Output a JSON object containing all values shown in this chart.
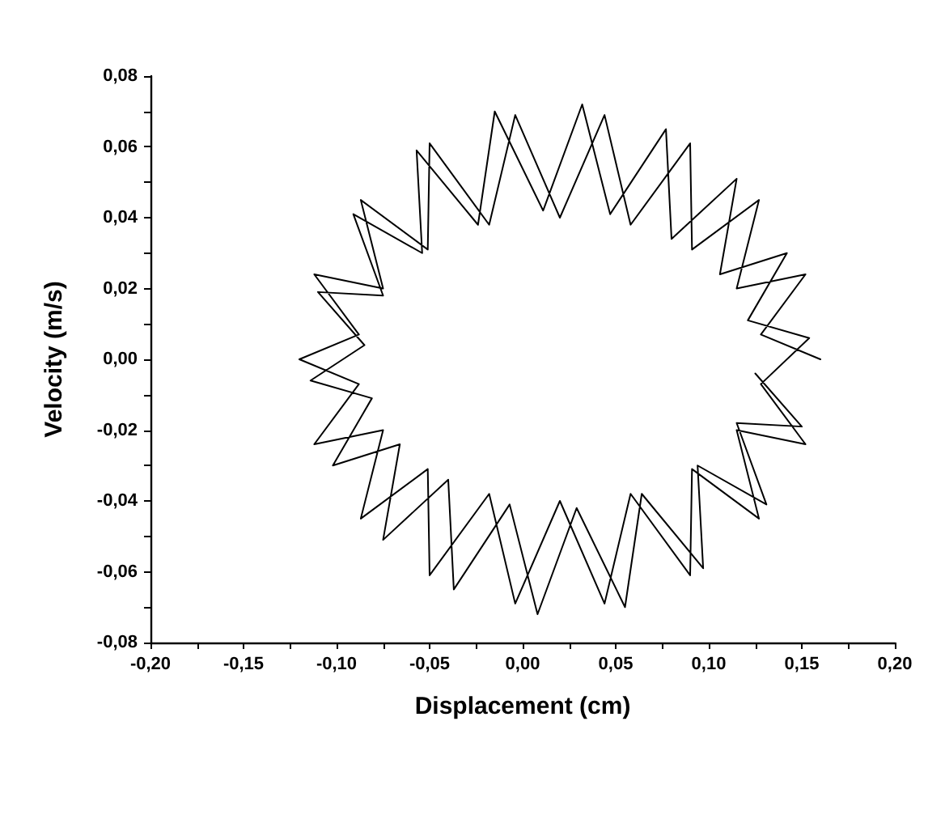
{
  "chart_data": {
    "type": "line",
    "xlabel": "Displacement (cm)",
    "ylabel": "Velocity (m/s)",
    "xlim": [
      -0.2,
      0.2
    ],
    "ylim": [
      -0.08,
      0.08
    ],
    "xticks": [
      {
        "value": -0.2,
        "label": "-0,20"
      },
      {
        "value": -0.175,
        "label": null
      },
      {
        "value": -0.15,
        "label": "-0,15"
      },
      {
        "value": -0.125,
        "label": null
      },
      {
        "value": -0.1,
        "label": "-0,10"
      },
      {
        "value": -0.075,
        "label": null
      },
      {
        "value": -0.05,
        "label": "-0,05"
      },
      {
        "value": -0.025,
        "label": null
      },
      {
        "value": 0,
        "label": "0,00"
      },
      {
        "value": 0.025,
        "label": null
      },
      {
        "value": 0.05,
        "label": "0,05"
      },
      {
        "value": 0.075,
        "label": null
      },
      {
        "value": 0.1,
        "label": "0,10"
      },
      {
        "value": 0.125,
        "label": null
      },
      {
        "value": 0.15,
        "label": "0,15"
      },
      {
        "value": 0.175,
        "label": null
      },
      {
        "value": 0.2,
        "label": "0,20"
      }
    ],
    "yticks": [
      {
        "value": -0.08,
        "label": "-0,08"
      },
      {
        "value": -0.07,
        "label": null
      },
      {
        "value": -0.06,
        "label": "-0,06"
      },
      {
        "value": -0.05,
        "label": null
      },
      {
        "value": -0.04,
        "label": "-0,04"
      },
      {
        "value": -0.03,
        "label": null
      },
      {
        "value": -0.02,
        "label": "-0,02"
      },
      {
        "value": -0.01,
        "label": null
      },
      {
        "value": 0,
        "label": "0,00"
      },
      {
        "value": 0.01,
        "label": null
      },
      {
        "value": 0.02,
        "label": "0,02"
      },
      {
        "value": 0.03,
        "label": null
      },
      {
        "value": 0.04,
        "label": "0,04"
      },
      {
        "value": 0.05,
        "label": null
      },
      {
        "value": 0.06,
        "label": "0,06"
      },
      {
        "value": 0.07,
        "label": null
      },
      {
        "value": 0.08,
        "label": "0,08"
      }
    ],
    "grid": false,
    "marker": "none",
    "line_style": "solid",
    "x": [
      0.16,
      0.128,
      0.152,
      0.115,
      0.127,
      0.091,
      0.09,
      0.058,
      0.044,
      0.02,
      -0.004,
      -0.018,
      -0.05,
      -0.051,
      -0.087,
      -0.075,
      -0.112,
      -0.088,
      -0.12,
      -0.088,
      -0.112,
      -0.075,
      -0.087,
      -0.051,
      -0.05,
      -0.018,
      -0.004,
      0.02,
      0.044,
      0.058,
      0.09,
      0.091,
      0.127,
      0.115,
      0.152,
      0.128,
      0.154,
      0.121,
      0.142,
      0.106,
      0.115,
      0.08,
      0.077,
      0.047,
      0.032,
      0.011,
      -0.015,
      -0.024,
      -0.057,
      -0.054,
      -0.091,
      -0.075,
      -0.11,
      -0.085,
      -0.114,
      -0.081,
      -0.102,
      -0.066,
      -0.075,
      -0.04,
      -0.037,
      -0.007,
      0.008,
      0.029,
      0.055,
      0.064,
      0.097,
      0.094,
      0.131,
      0.115,
      0.15,
      0.125
    ],
    "series": [
      {
        "color": "#000000",
        "values": [
          0,
          0.007,
          0.024,
          0.02,
          0.045,
          0.031,
          0.061,
          0.038,
          0.069,
          0.04,
          0.069,
          0.038,
          0.061,
          0.031,
          0.045,
          0.02,
          0.024,
          0.007,
          0,
          -0.007,
          -0.024,
          -0.02,
          -0.045,
          -0.031,
          -0.061,
          -0.038,
          -0.069,
          -0.04,
          -0.069,
          -0.038,
          -0.061,
          -0.031,
          -0.045,
          -0.02,
          -0.024,
          -0.007,
          0.006,
          0.011,
          0.03,
          0.024,
          0.051,
          0.034,
          0.065,
          0.041,
          0.072,
          0.042,
          0.07,
          0.038,
          0.059,
          0.03,
          0.041,
          0.018,
          0.019,
          0.004,
          -0.006,
          -0.011,
          -0.03,
          -0.024,
          -0.051,
          -0.034,
          -0.065,
          -0.041,
          -0.072,
          -0.042,
          -0.07,
          -0.038,
          -0.059,
          -0.03,
          -0.041,
          -0.018,
          -0.019,
          -0.004
        ]
      }
    ]
  }
}
